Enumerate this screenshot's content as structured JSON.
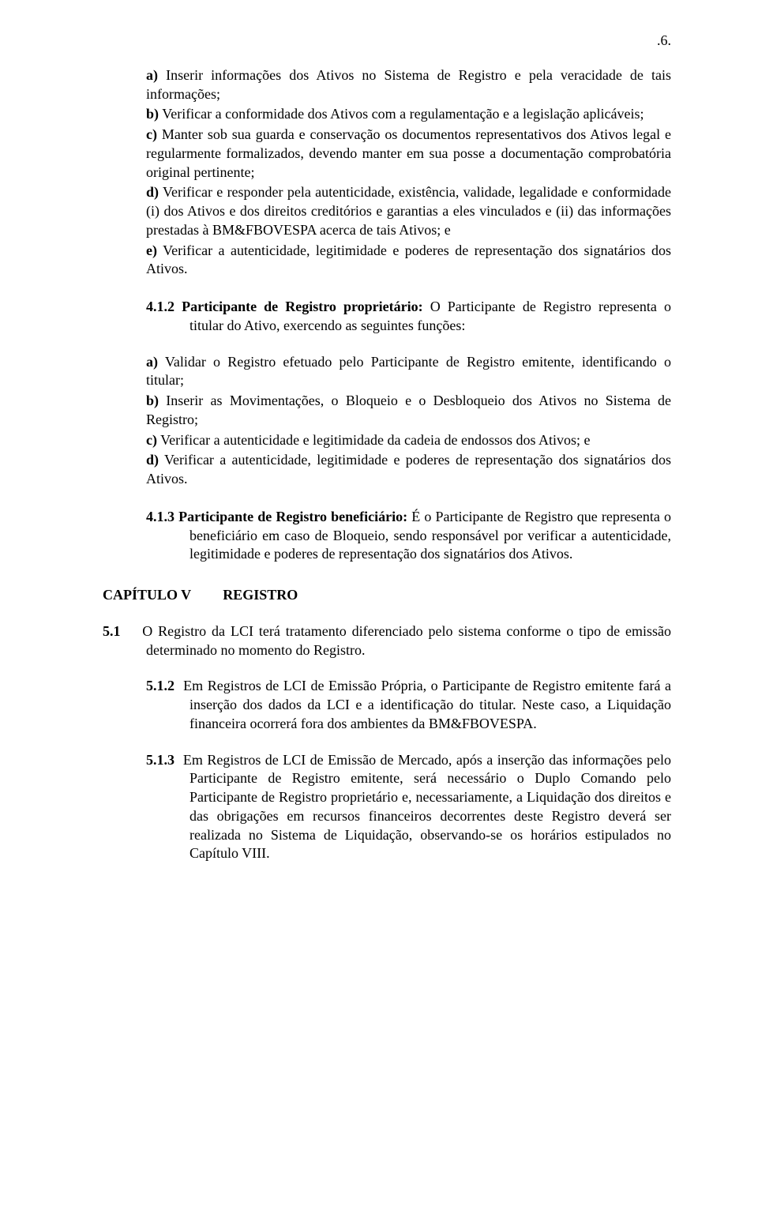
{
  "page_number": ".6.",
  "section_a": {
    "items": [
      {
        "label": "a)",
        "text": "Inserir informações dos Ativos no Sistema de Registro e pela veracidade de tais informações;"
      },
      {
        "label": "b)",
        "text": "Verificar a conformidade dos Ativos com a regulamentação e a legislação aplicáveis;"
      },
      {
        "label": "c)",
        "text": "Manter sob sua guarda e conservação os documentos representativos dos Ativos legal e regularmente formalizados, devendo manter em sua posse a documentação comprobatória original pertinente;"
      },
      {
        "label": "d)",
        "text": "Verificar e responder pela autenticidade, existência, validade, legalidade e conformidade (i) dos Ativos e dos direitos creditórios e garantias a eles vinculados e (ii) das informações prestadas à BM&FBOVESPA acerca de tais Ativos; e"
      },
      {
        "label": "e)",
        "text": "Verificar a autenticidade, legitimidade e poderes de representação dos signatários dos Ativos."
      }
    ]
  },
  "item_412": {
    "num": "4.1.2",
    "heading": "Participante de Registro proprietário:",
    "body": " O Participante de Registro representa o titular do Ativo, exercendo as seguintes funções:",
    "subitems": [
      {
        "label": "a)",
        "text": "Validar o Registro efetuado pelo Participante de Registro emitente, identificando o titular;"
      },
      {
        "label": "b)",
        "text": "Inserir as Movimentações, o Bloqueio e o Desbloqueio dos Ativos no Sistema de Registro;"
      },
      {
        "label": "c)",
        "text": "Verificar a autenticidade e legitimidade da cadeia de endossos dos Ativos; e"
      },
      {
        "label": "d)",
        "text": "Verificar a autenticidade, legitimidade e poderes de representação dos signatários dos Ativos."
      }
    ]
  },
  "item_413": {
    "num": "4.1.3",
    "heading": "Participante de Registro beneficiário:",
    "body": " É o Participante de Registro que representa o beneficiário em caso de Bloqueio, sendo responsável por verificar a autenticidade, legitimidade e poderes de representação dos signatários dos Ativos."
  },
  "chapter_v": {
    "label": "CAPÍTULO V",
    "title": "REGISTRO"
  },
  "item_51": {
    "num": "5.1",
    "body": "O Registro da LCI terá tratamento diferenciado pelo sistema conforme o tipo de emissão determinado no momento do Registro."
  },
  "item_512": {
    "num": "5.1.2",
    "body": "Em Registros de LCI de Emissão Própria, o Participante de Registro emitente fará a inserção dos dados da LCI e a identificação do titular. Neste caso, a Liquidação financeira ocorrerá fora dos ambientes da BM&FBOVESPA."
  },
  "item_513": {
    "num": "5.1.3",
    "body": "Em Registros de LCI de Emissão de Mercado, após a inserção das informações pelo Participante de Registro emitente, será necessário o Duplo Comando pelo Participante de Registro proprietário e, necessariamente, a Liquidação dos direitos e das obrigações em recursos financeiros decorrentes deste Registro deverá ser realizada no Sistema de Liquidação, observando-se os horários estipulados no Capítulo VIII."
  }
}
